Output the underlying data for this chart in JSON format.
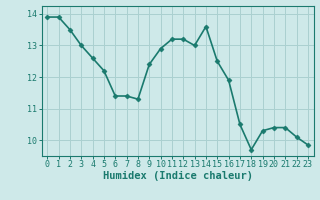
{
  "x": [
    0,
    1,
    2,
    3,
    4,
    5,
    6,
    7,
    8,
    9,
    10,
    11,
    12,
    13,
    14,
    15,
    16,
    17,
    18,
    19,
    20,
    21,
    22,
    23
  ],
  "y": [
    13.9,
    13.9,
    13.5,
    13.0,
    12.6,
    12.2,
    11.4,
    11.4,
    11.3,
    12.4,
    12.9,
    13.2,
    13.2,
    13.0,
    13.6,
    12.5,
    11.9,
    10.5,
    9.7,
    10.3,
    10.4,
    10.4,
    10.1,
    9.85
  ],
  "line_color": "#1a7a6e",
  "marker": "D",
  "marker_size": 2.5,
  "bg_color": "#cee9e9",
  "grid_color": "#aad0d0",
  "axis_color": "#1a7a6e",
  "xlabel": "Humidex (Indice chaleur)",
  "xlabel_fontsize": 7.5,
  "ylim": [
    9.5,
    14.25
  ],
  "xlim": [
    -0.5,
    23.5
  ],
  "yticks": [
    10,
    11,
    12,
    13,
    14
  ],
  "xticks": [
    0,
    1,
    2,
    3,
    4,
    5,
    6,
    7,
    8,
    9,
    10,
    11,
    12,
    13,
    14,
    15,
    16,
    17,
    18,
    19,
    20,
    21,
    22,
    23
  ],
  "tick_fontsize": 6,
  "line_width": 1.2
}
